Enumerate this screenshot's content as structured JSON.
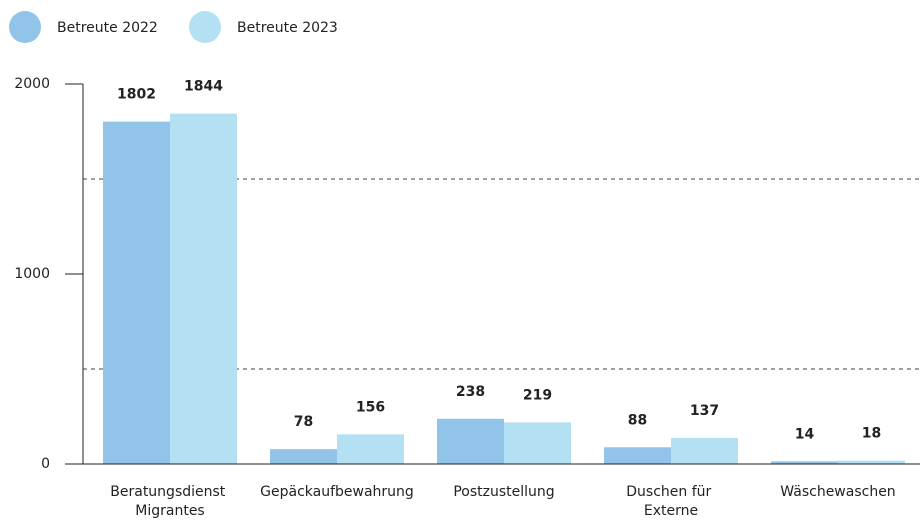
{
  "chart_data": {
    "type": "bar",
    "categories": [
      "Beratungsdienst Migrantes",
      "Gepäckaufbewahrung",
      "Postzustellung",
      "Duschen für Externe",
      "Wäschewaschen"
    ],
    "series": [
      {
        "name": "Betreute 2022",
        "color": "#92c3e8",
        "values": [
          1802,
          78,
          238,
          88,
          14
        ]
      },
      {
        "name": "Betreute 2023",
        "color": "#b3e0f2",
        "values": [
          1844,
          156,
          219,
          137,
          18
        ]
      }
    ],
    "ylim": [
      0,
      2000
    ],
    "yticks": [
      0,
      1000,
      2000
    ],
    "gridlines": [
      500,
      1500
    ]
  }
}
